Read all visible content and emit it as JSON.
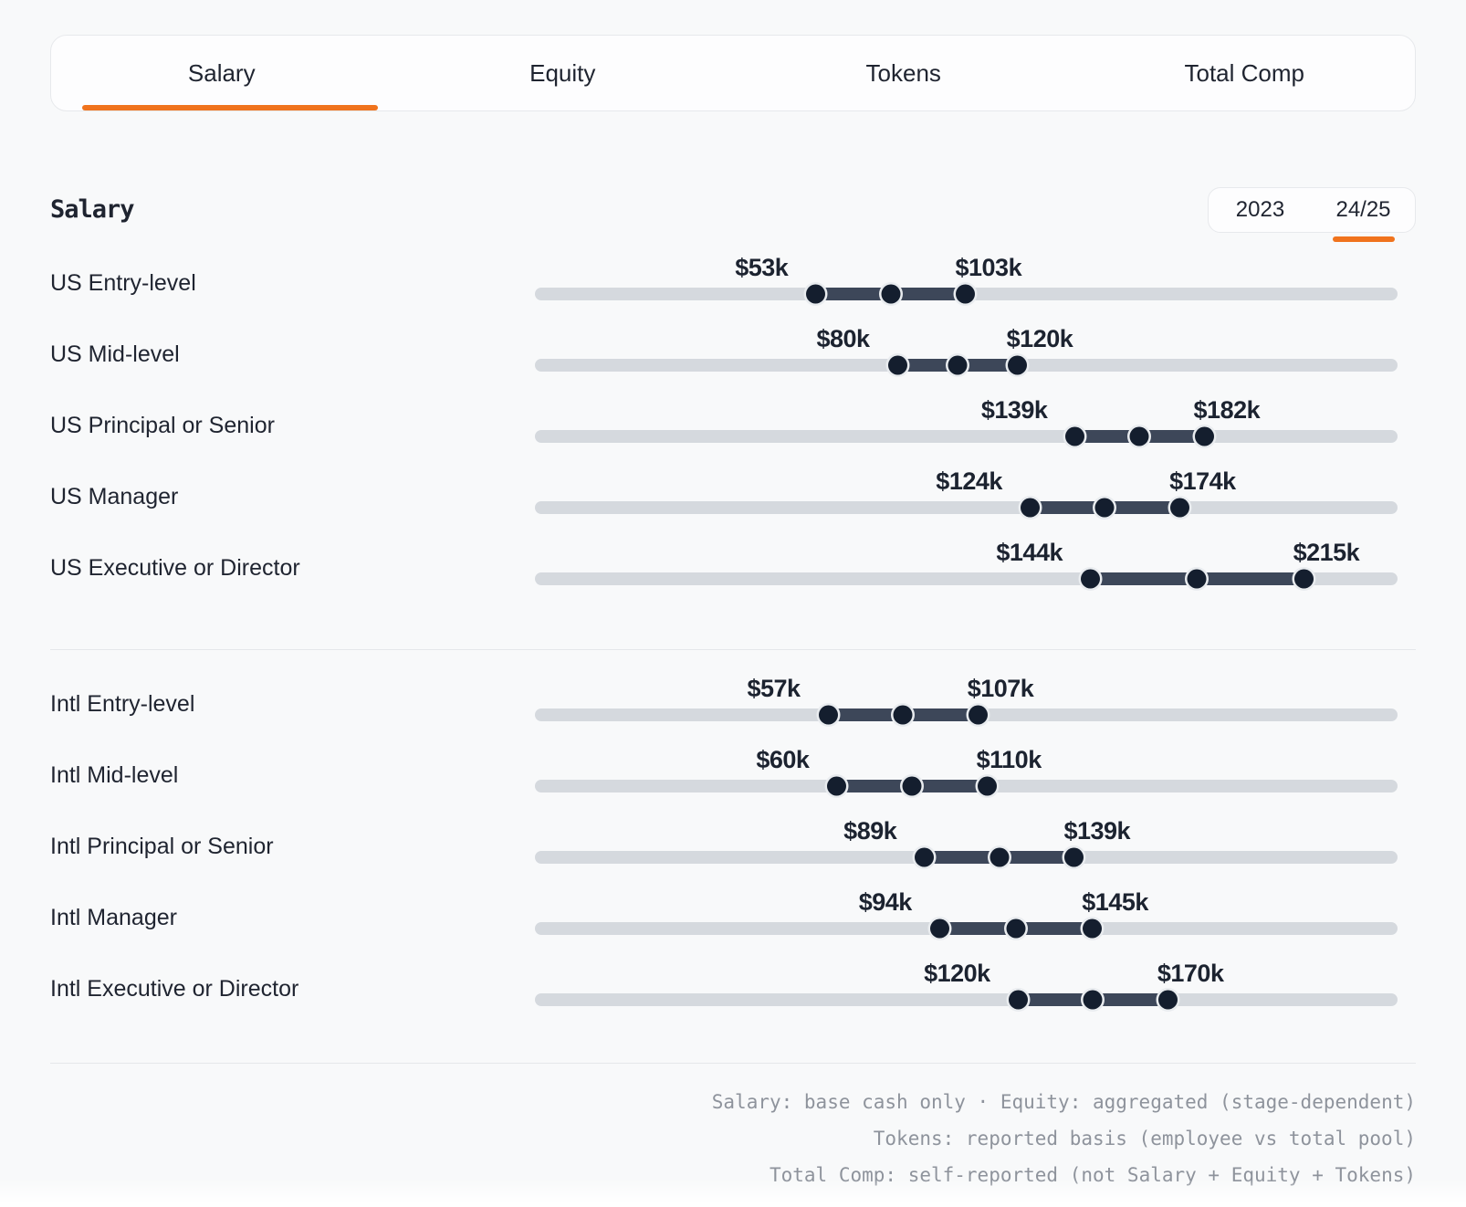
{
  "tabs": {
    "items": [
      {
        "label": "Salary",
        "active": true
      },
      {
        "label": "Equity",
        "active": false
      },
      {
        "label": "Tokens",
        "active": false
      },
      {
        "label": "Total Comp",
        "active": false
      }
    ]
  },
  "header": {
    "title": "Salary",
    "year_toggle": [
      {
        "label": "2023",
        "active": false
      },
      {
        "label": "24/25",
        "active": true
      }
    ]
  },
  "chart_data": {
    "type": "bar",
    "subtype": "horizontal-range-slider",
    "title": "Salary",
    "unit": "USD thousands per year",
    "scale": {
      "min": -40,
      "max": 246
    },
    "handle_positions": [
      "range-start",
      "midpoint",
      "range-end"
    ],
    "groups": [
      {
        "name": "US",
        "rows": [
          {
            "label": "US Entry-level",
            "min": 53,
            "max": 103,
            "min_label": "$53k",
            "max_label": "$103k"
          },
          {
            "label": "US Mid-level",
            "min": 80,
            "max": 120,
            "min_label": "$80k",
            "max_label": "$120k"
          },
          {
            "label": "US Principal or Senior",
            "min": 139,
            "max": 182,
            "min_label": "$139k",
            "max_label": "$182k"
          },
          {
            "label": "US Manager",
            "min": 124,
            "max": 174,
            "min_label": "$124k",
            "max_label": "$174k"
          },
          {
            "label": "US Executive or Director",
            "min": 144,
            "max": 215,
            "min_label": "$144k",
            "max_label": "$215k"
          }
        ]
      },
      {
        "name": "Intl",
        "rows": [
          {
            "label": "Intl Entry-level",
            "min": 57,
            "max": 107,
            "min_label": "$57k",
            "max_label": "$107k"
          },
          {
            "label": "Intl Mid-level",
            "min": 60,
            "max": 110,
            "min_label": "$60k",
            "max_label": "$110k"
          },
          {
            "label": "Intl Principal or Senior",
            "min": 89,
            "max": 139,
            "min_label": "$89k",
            "max_label": "$139k"
          },
          {
            "label": "Intl Manager",
            "min": 94,
            "max": 145,
            "min_label": "$94k",
            "max_label": "$145k"
          },
          {
            "label": "Intl Executive or Director",
            "min": 120,
            "max": 170,
            "min_label": "$120k",
            "max_label": "$170k"
          }
        ]
      }
    ]
  },
  "footer": {
    "lines": [
      "Salary: base cash only · Equity: aggregated (stage-dependent)",
      "Tokens: reported basis (employee vs total pool)",
      "Total Comp: self-reported (not Salary + Equity + Tokens)"
    ]
  },
  "colors": {
    "accent": "#f0731d",
    "bar": "#3d4759",
    "dot": "#141e2e",
    "dot_ring": "#e9ecef",
    "track": "#d5d9de",
    "text": "#1f2430",
    "muted": "#8e939c",
    "border": "#e7e9ec",
    "surface": "#fdfdfe",
    "background": "#f8f9fa",
    "divider": "#e5e7ea"
  }
}
